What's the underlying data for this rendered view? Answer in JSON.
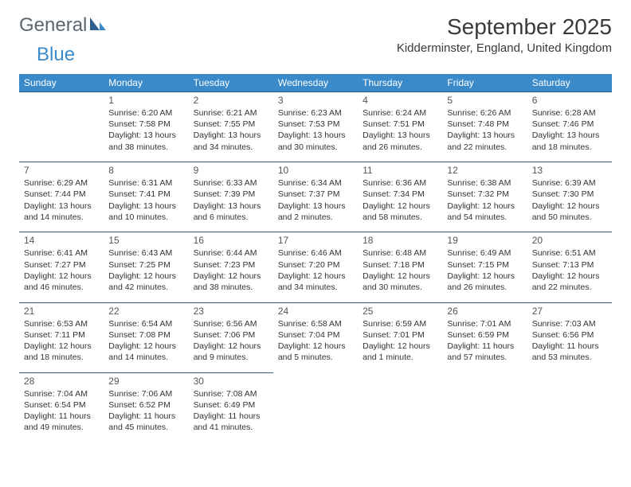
{
  "logo": {
    "general": "General",
    "blue": "Blue"
  },
  "title": "September 2025",
  "location": "Kidderminster, England, United Kingdom",
  "colors": {
    "header_bg": "#3a8ac9",
    "header_text": "#ffffff",
    "cell_border": "#2c5f8d",
    "text": "#333333"
  },
  "weekdays": [
    "Sunday",
    "Monday",
    "Tuesday",
    "Wednesday",
    "Thursday",
    "Friday",
    "Saturday"
  ],
  "weeks": [
    [
      null,
      {
        "n": "1",
        "sr": "6:20 AM",
        "ss": "7:58 PM",
        "dl": "13 hours and 38 minutes."
      },
      {
        "n": "2",
        "sr": "6:21 AM",
        "ss": "7:55 PM",
        "dl": "13 hours and 34 minutes."
      },
      {
        "n": "3",
        "sr": "6:23 AM",
        "ss": "7:53 PM",
        "dl": "13 hours and 30 minutes."
      },
      {
        "n": "4",
        "sr": "6:24 AM",
        "ss": "7:51 PM",
        "dl": "13 hours and 26 minutes."
      },
      {
        "n": "5",
        "sr": "6:26 AM",
        "ss": "7:48 PM",
        "dl": "13 hours and 22 minutes."
      },
      {
        "n": "6",
        "sr": "6:28 AM",
        "ss": "7:46 PM",
        "dl": "13 hours and 18 minutes."
      }
    ],
    [
      {
        "n": "7",
        "sr": "6:29 AM",
        "ss": "7:44 PM",
        "dl": "13 hours and 14 minutes."
      },
      {
        "n": "8",
        "sr": "6:31 AM",
        "ss": "7:41 PM",
        "dl": "13 hours and 10 minutes."
      },
      {
        "n": "9",
        "sr": "6:33 AM",
        "ss": "7:39 PM",
        "dl": "13 hours and 6 minutes."
      },
      {
        "n": "10",
        "sr": "6:34 AM",
        "ss": "7:37 PM",
        "dl": "13 hours and 2 minutes."
      },
      {
        "n": "11",
        "sr": "6:36 AM",
        "ss": "7:34 PM",
        "dl": "12 hours and 58 minutes."
      },
      {
        "n": "12",
        "sr": "6:38 AM",
        "ss": "7:32 PM",
        "dl": "12 hours and 54 minutes."
      },
      {
        "n": "13",
        "sr": "6:39 AM",
        "ss": "7:30 PM",
        "dl": "12 hours and 50 minutes."
      }
    ],
    [
      {
        "n": "14",
        "sr": "6:41 AM",
        "ss": "7:27 PM",
        "dl": "12 hours and 46 minutes."
      },
      {
        "n": "15",
        "sr": "6:43 AM",
        "ss": "7:25 PM",
        "dl": "12 hours and 42 minutes."
      },
      {
        "n": "16",
        "sr": "6:44 AM",
        "ss": "7:23 PM",
        "dl": "12 hours and 38 minutes."
      },
      {
        "n": "17",
        "sr": "6:46 AM",
        "ss": "7:20 PM",
        "dl": "12 hours and 34 minutes."
      },
      {
        "n": "18",
        "sr": "6:48 AM",
        "ss": "7:18 PM",
        "dl": "12 hours and 30 minutes."
      },
      {
        "n": "19",
        "sr": "6:49 AM",
        "ss": "7:15 PM",
        "dl": "12 hours and 26 minutes."
      },
      {
        "n": "20",
        "sr": "6:51 AM",
        "ss": "7:13 PM",
        "dl": "12 hours and 22 minutes."
      }
    ],
    [
      {
        "n": "21",
        "sr": "6:53 AM",
        "ss": "7:11 PM",
        "dl": "12 hours and 18 minutes."
      },
      {
        "n": "22",
        "sr": "6:54 AM",
        "ss": "7:08 PM",
        "dl": "12 hours and 14 minutes."
      },
      {
        "n": "23",
        "sr": "6:56 AM",
        "ss": "7:06 PM",
        "dl": "12 hours and 9 minutes."
      },
      {
        "n": "24",
        "sr": "6:58 AM",
        "ss": "7:04 PM",
        "dl": "12 hours and 5 minutes."
      },
      {
        "n": "25",
        "sr": "6:59 AM",
        "ss": "7:01 PM",
        "dl": "12 hours and 1 minute."
      },
      {
        "n": "26",
        "sr": "7:01 AM",
        "ss": "6:59 PM",
        "dl": "11 hours and 57 minutes."
      },
      {
        "n": "27",
        "sr": "7:03 AM",
        "ss": "6:56 PM",
        "dl": "11 hours and 53 minutes."
      }
    ],
    [
      {
        "n": "28",
        "sr": "7:04 AM",
        "ss": "6:54 PM",
        "dl": "11 hours and 49 minutes."
      },
      {
        "n": "29",
        "sr": "7:06 AM",
        "ss": "6:52 PM",
        "dl": "11 hours and 45 minutes."
      },
      {
        "n": "30",
        "sr": "7:08 AM",
        "ss": "6:49 PM",
        "dl": "11 hours and 41 minutes."
      },
      null,
      null,
      null,
      null
    ]
  ],
  "labels": {
    "sunrise": "Sunrise:",
    "sunset": "Sunset:",
    "daylight": "Daylight:"
  }
}
